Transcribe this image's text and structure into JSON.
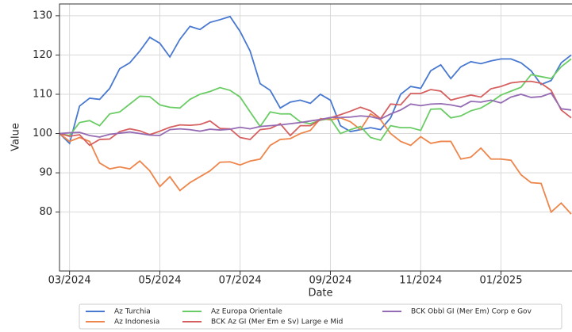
{
  "chart_data": {
    "type": "line",
    "x_label": "Date",
    "y_label": "Value",
    "categories": [
      null,
      "03/2024",
      null,
      null,
      null,
      null,
      null,
      null,
      null,
      null,
      "05/2024",
      null,
      null,
      null,
      null,
      null,
      null,
      null,
      "07/2024",
      null,
      null,
      null,
      null,
      null,
      null,
      null,
      null,
      "09/2024",
      null,
      null,
      null,
      null,
      null,
      null,
      null,
      null,
      "11/2024",
      null,
      null,
      null,
      null,
      null,
      null,
      null,
      "01/2025",
      null,
      null,
      null,
      null,
      null,
      null,
      null
    ],
    "series": [
      {
        "name": "Az Turchia",
        "color": "#4878d0",
        "values": [
          100,
          97.5,
          107,
          109,
          108.7,
          111.5,
          116.5,
          118,
          121,
          124.5,
          123,
          119.5,
          124,
          127.3,
          126.5,
          128.3,
          129,
          129.8,
          126,
          121,
          112.7,
          111,
          106.5,
          108,
          108.5,
          107.7,
          110,
          108.5,
          102,
          100.5,
          101,
          101.5,
          101,
          104,
          110,
          112,
          111.5,
          116,
          117.5,
          114,
          117,
          118.3,
          117.8,
          118.5,
          119,
          119,
          118,
          116,
          112.5,
          113.5,
          118,
          120
        ]
      },
      {
        "name": "Az Indonesia",
        "color": "#ee854a",
        "values": [
          100,
          98,
          99,
          98,
          92.5,
          91,
          91.5,
          91,
          93,
          90.5,
          86.5,
          89,
          85.5,
          87.5,
          89,
          90.5,
          92.7,
          92.8,
          92,
          93,
          93.5,
          97,
          98.5,
          98.7,
          100,
          100.8,
          103.8,
          103.5,
          104,
          103,
          101,
          105,
          103.5,
          100,
          98,
          97,
          99.2,
          97.5,
          98,
          98,
          93.5,
          94,
          96.3,
          93.5,
          93.5,
          93.2,
          89.5,
          87.5,
          87.3,
          80,
          82.3,
          79.5
        ]
      },
      {
        "name": "Az Europa Orientale",
        "color": "#6acc64",
        "values": [
          100,
          99.5,
          102.8,
          103.3,
          102,
          105,
          105.5,
          107.5,
          109.5,
          109.4,
          107.3,
          106.7,
          106.5,
          108.7,
          110,
          110.7,
          111.7,
          111,
          109.3,
          105.5,
          101.8,
          105.5,
          105,
          105,
          103,
          102.5,
          103.4,
          103.8,
          100,
          101,
          101.8,
          99,
          98.3,
          102,
          101.5,
          101.5,
          100.8,
          106.2,
          106.3,
          104,
          104.5,
          105.8,
          106.5,
          108,
          109.8,
          110.8,
          111.8,
          115,
          114.5,
          114,
          117,
          119
        ]
      },
      {
        "name": "BCK Az GI (Mer Em e Sv) Large e Mid",
        "color": "#d65f5f",
        "values": [
          100,
          99.3,
          99.7,
          97,
          98.5,
          98.6,
          100.5,
          101.2,
          100.7,
          99.7,
          100.6,
          101.6,
          102.2,
          102.1,
          102.3,
          103.2,
          101.3,
          101.2,
          99,
          98.5,
          101,
          101.3,
          102.5,
          99.5,
          102,
          102,
          103.5,
          104,
          104.8,
          105.7,
          106.7,
          105.8,
          103.8,
          107.5,
          107.3,
          110.2,
          110.2,
          111.2,
          110.8,
          108.5,
          109.2,
          109.8,
          109.3,
          111.4,
          112,
          112.9,
          113.2,
          113.3,
          112.8,
          111,
          106,
          104
        ]
      },
      {
        "name": "BCK Obbl GI (Mer Em) Corp e Gov",
        "color": "#956cb4",
        "values": [
          100,
          100.2,
          100.3,
          99.5,
          99.1,
          99.8,
          100.1,
          100.4,
          100,
          99.6,
          99.5,
          101,
          101.2,
          101,
          100.6,
          101.1,
          100.9,
          101.1,
          101.6,
          101.2,
          101.8,
          102,
          102.2,
          102.5,
          102.8,
          103.2,
          103.6,
          104.1,
          104.1,
          104.2,
          104.5,
          104.3,
          103.7,
          105,
          106,
          107.5,
          107.1,
          107.5,
          107.6,
          107.3,
          106.8,
          108.2,
          108,
          108.5,
          107.8,
          109.3,
          110,
          109.2,
          109.4,
          110.3,
          106.3,
          106
        ]
      }
    ],
    "ylim": [
      65,
      133
    ],
    "yticks": [
      80,
      90,
      100,
      110,
      120,
      130
    ],
    "grid": true,
    "legend": "bottom"
  }
}
